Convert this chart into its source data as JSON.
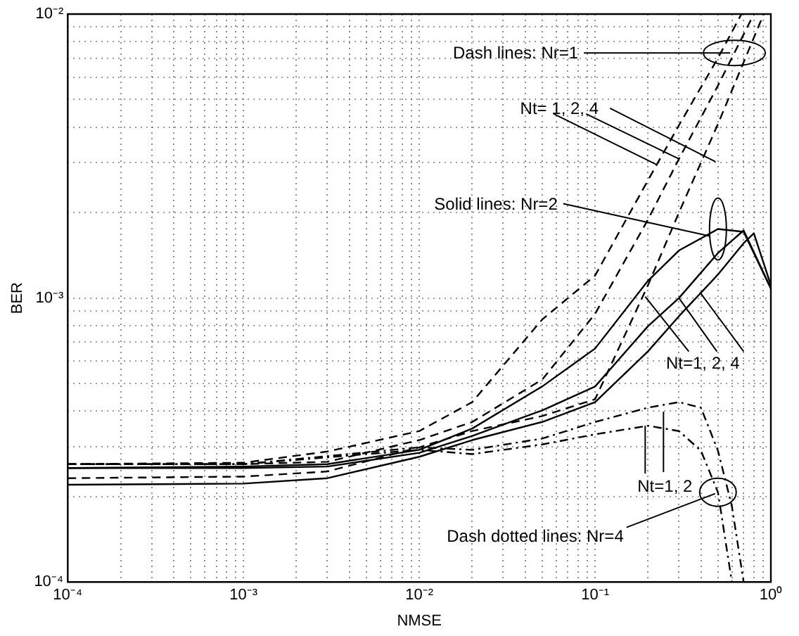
{
  "chart_data": {
    "type": "line",
    "xlabel": "NMSE",
    "ylabel": "BER",
    "log": "xy",
    "grid": true,
    "legend": false,
    "marker": "none",
    "xlim": [
      0.0001,
      1
    ],
    "ylim": [
      0.0001,
      0.01
    ],
    "xticks": [
      {
        "value": 0.0001,
        "label": "10⁻⁴"
      },
      {
        "value": 0.0002,
        "label": null
      },
      {
        "value": 0.0003,
        "label": null
      },
      {
        "value": 0.0004,
        "label": null
      },
      {
        "value": 0.0005,
        "label": null
      },
      {
        "value": 0.0006,
        "label": null
      },
      {
        "value": 0.0007,
        "label": null
      },
      {
        "value": 0.0008,
        "label": null
      },
      {
        "value": 0.0009,
        "label": null
      },
      {
        "value": 0.001,
        "label": "10⁻³"
      },
      {
        "value": 0.002,
        "label": null
      },
      {
        "value": 0.003,
        "label": null
      },
      {
        "value": 0.004,
        "label": null
      },
      {
        "value": 0.005,
        "label": null
      },
      {
        "value": 0.006,
        "label": null
      },
      {
        "value": 0.007,
        "label": null
      },
      {
        "value": 0.008,
        "label": null
      },
      {
        "value": 0.009,
        "label": null
      },
      {
        "value": 0.01,
        "label": "10⁻²"
      },
      {
        "value": 0.02,
        "label": null
      },
      {
        "value": 0.03,
        "label": null
      },
      {
        "value": 0.04,
        "label": null
      },
      {
        "value": 0.05,
        "label": null
      },
      {
        "value": 0.06,
        "label": null
      },
      {
        "value": 0.07,
        "label": null
      },
      {
        "value": 0.08,
        "label": null
      },
      {
        "value": 0.09,
        "label": null
      },
      {
        "value": 0.1,
        "label": "10⁻¹"
      },
      {
        "value": 0.2,
        "label": null
      },
      {
        "value": 0.3,
        "label": null
      },
      {
        "value": 0.4,
        "label": null
      },
      {
        "value": 0.5,
        "label": null
      },
      {
        "value": 0.6,
        "label": null
      },
      {
        "value": 0.7,
        "label": null
      },
      {
        "value": 0.8,
        "label": null
      },
      {
        "value": 0.9,
        "label": null
      },
      {
        "value": 1,
        "label": "10⁰"
      }
    ],
    "yticks": [
      {
        "value": 0.0001,
        "label": "10⁻⁴"
      },
      {
        "value": 0.0002,
        "label": null
      },
      {
        "value": 0.0003,
        "label": null
      },
      {
        "value": 0.0004,
        "label": null
      },
      {
        "value": 0.0005,
        "label": null
      },
      {
        "value": 0.0006,
        "label": null
      },
      {
        "value": 0.0007,
        "label": null
      },
      {
        "value": 0.0008,
        "label": null
      },
      {
        "value": 0.0009,
        "label": null
      },
      {
        "value": 0.001,
        "label": "10⁻³"
      },
      {
        "value": 0.002,
        "label": null
      },
      {
        "value": 0.003,
        "label": null
      },
      {
        "value": 0.004,
        "label": null
      },
      {
        "value": 0.005,
        "label": null
      },
      {
        "value": 0.006,
        "label": null
      },
      {
        "value": 0.007,
        "label": null
      },
      {
        "value": 0.008,
        "label": null
      },
      {
        "value": 0.009,
        "label": null
      },
      {
        "value": 0.01,
        "label": "10⁻²"
      }
    ],
    "series": [
      {
        "color": "#000000",
        "line_style": "dashed",
        "x": [
          0.0001,
          0.001,
          0.003,
          0.01,
          0.02,
          0.05,
          0.1,
          0.2,
          0.3,
          0.5,
          0.68
        ],
        "values": [
          0.00026,
          0.000263,
          0.000288,
          0.00034,
          0.00043,
          0.00084,
          0.0012,
          0.0026,
          0.00406,
          0.007,
          0.01
        ]
      },
      {
        "color": "#000000",
        "line_style": "dashed",
        "x": [
          0.0001,
          0.001,
          0.003,
          0.01,
          0.02,
          0.05,
          0.1,
          0.2,
          0.3,
          0.5,
          0.62,
          0.8
        ],
        "values": [
          0.00026,
          0.00026,
          0.000265,
          0.000316,
          0.000366,
          0.000516,
          0.00088,
          0.00189,
          0.00309,
          0.0056,
          0.0073,
          0.01
        ]
      },
      {
        "color": "#000000",
        "line_style": "dashed",
        "x": [
          0.0001,
          0.001,
          0.003,
          0.01,
          0.02,
          0.05,
          0.1,
          0.2,
          0.3,
          0.5,
          0.91
        ],
        "values": [
          0.000232,
          0.000235,
          0.000245,
          0.000298,
          0.00034,
          0.000384,
          0.00044,
          0.00111,
          0.002,
          0.0041,
          0.01
        ]
      },
      {
        "color": "#000000",
        "line_style": "solid",
        "x": [
          0.0001,
          0.001,
          0.003,
          0.01,
          0.02,
          0.05,
          0.1,
          0.2,
          0.3,
          0.5,
          0.7,
          1
        ],
        "values": [
          0.000252,
          0.000255,
          0.00026,
          0.000292,
          0.000347,
          0.000488,
          0.000664,
          0.00115,
          0.00147,
          0.00175,
          0.00171,
          0.00108
        ]
      },
      {
        "color": "#000000",
        "line_style": "solid",
        "x": [
          0.0001,
          0.001,
          0.003,
          0.01,
          0.02,
          0.05,
          0.1,
          0.2,
          0.3,
          0.5,
          0.7,
          1
        ],
        "values": [
          0.000252,
          0.000252,
          0.000255,
          0.000285,
          0.000327,
          0.000402,
          0.000488,
          0.000796,
          0.001,
          0.00144,
          0.00173,
          0.00108
        ]
      },
      {
        "color": "#000000",
        "line_style": "solid",
        "x": [
          0.0001,
          0.001,
          0.003,
          0.01,
          0.02,
          0.05,
          0.1,
          0.2,
          0.3,
          0.5,
          0.7,
          0.8,
          1
        ],
        "values": [
          0.00022,
          0.000222,
          0.000232,
          0.000276,
          0.000316,
          0.000366,
          0.00043,
          0.000649,
          0.000863,
          0.00121,
          0.00156,
          0.00169,
          0.00111
        ]
      },
      {
        "color": "#000000",
        "line_style": "dashdot",
        "x": [
          0.0001,
          0.001,
          0.01,
          0.02,
          0.05,
          0.1,
          0.2,
          0.3,
          0.4,
          0.5,
          0.6
        ],
        "values": [
          0.00026,
          0.00026,
          0.000292,
          0.000282,
          0.000305,
          0.000331,
          0.000355,
          0.00034,
          0.00029,
          0.000207,
          0.0001
        ]
      },
      {
        "color": "#000000",
        "line_style": "dashdot",
        "x": [
          0.0001,
          0.001,
          0.01,
          0.02,
          0.05,
          0.1,
          0.2,
          0.3,
          0.4,
          0.5,
          0.6,
          0.7
        ],
        "values": [
          0.00026,
          0.00026,
          0.000298,
          0.000292,
          0.00032,
          0.000366,
          0.000411,
          0.00043,
          0.000411,
          0.00029,
          0.000185,
          0.0001
        ]
      }
    ],
    "annotations": [
      {
        "text": "Dash lines: Nr=1",
        "x": 0.62,
        "y": 0.0073
      },
      {
        "text": "Nt= 1,  2,  4",
        "x": 0.3,
        "y": 0.00309
      },
      {
        "text": "Solid lines: Nr=2",
        "x": 0.5,
        "y": 0.00175
      },
      {
        "text": "Nt=1,  2,  4",
        "x": 0.3,
        "y": 0.001
      },
      {
        "text": "Nt=1, 2",
        "x": 0.2,
        "y": 0.000355
      },
      {
        "text": "Dash dotted lines: Nr=4",
        "x": 0.5,
        "y": 0.000207
      }
    ]
  }
}
